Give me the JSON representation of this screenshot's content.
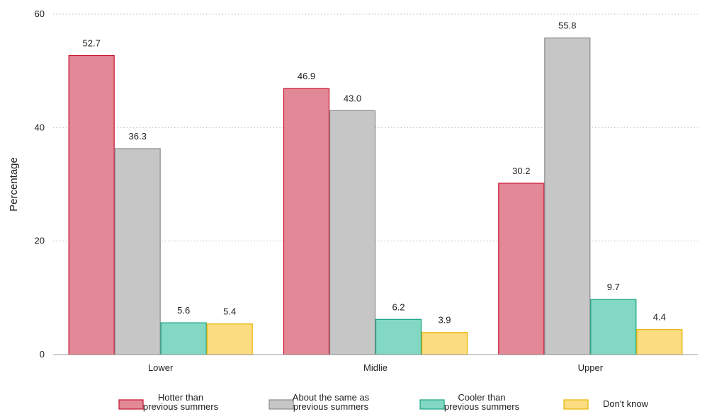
{
  "chart_data": {
    "type": "bar",
    "title": "",
    "xlabel": "",
    "ylabel": "Percentage",
    "ylim": [
      0,
      60
    ],
    "yticks": [
      0,
      20,
      40,
      60
    ],
    "grid": "horizontal-dotted",
    "legend_position": "bottom",
    "categories": [
      "Lower",
      "Midlie",
      "Upper"
    ],
    "series": [
      {
        "name": "Hotter than previous summers",
        "legend_lines": [
          "Hotter than",
          "previous summers"
        ],
        "values": [
          52.7,
          46.9,
          30.2
        ],
        "fill": "#e28896",
        "stroke": "#c8102e"
      },
      {
        "name": "About the same as previous summers",
        "legend_lines": [
          "About the same as",
          "previous summers"
        ],
        "values": [
          36.3,
          43.0,
          55.8
        ],
        "fill": "#c6c6c6",
        "stroke": "#8a8a8a"
      },
      {
        "name": "Cooler than previous summers",
        "legend_lines": [
          "Cooler than",
          "previous summers"
        ],
        "values": [
          5.6,
          6.2,
          9.7
        ],
        "fill": "#82d8c2",
        "stroke": "#16a383"
      },
      {
        "name": "Don't know",
        "legend_lines": [
          "Don't know"
        ],
        "values": [
          5.4,
          3.9,
          4.4
        ],
        "fill": "#fbdc80",
        "stroke": "#e8b400"
      }
    ]
  }
}
